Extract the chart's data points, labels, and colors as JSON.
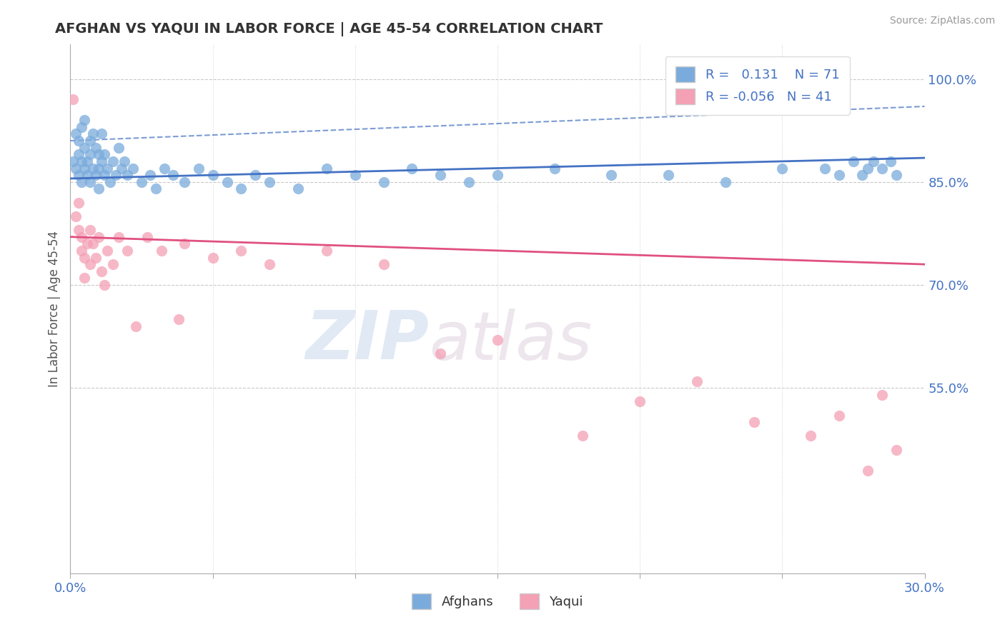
{
  "title": "AFGHAN VS YAQUI IN LABOR FORCE | AGE 45-54 CORRELATION CHART",
  "source": "Source: ZipAtlas.com",
  "ylabel": "In Labor Force | Age 45-54",
  "xlim": [
    0.0,
    0.3
  ],
  "ylim": [
    0.28,
    1.05
  ],
  "right_yticks": [
    1.0,
    0.85,
    0.7,
    0.55
  ],
  "right_yticklabels": [
    "100.0%",
    "85.0%",
    "70.0%",
    "55.0%"
  ],
  "xticks": [
    0.0,
    0.05,
    0.1,
    0.15,
    0.2,
    0.25,
    0.3
  ],
  "xticklabels": [
    "0.0%",
    "",
    "",
    "",
    "",
    "",
    "30.0%"
  ],
  "legend_labels": [
    "Afghans",
    "Yaqui"
  ],
  "afghan_R": 0.131,
  "afghan_N": 71,
  "yaqui_R": -0.056,
  "yaqui_N": 41,
  "blue_color": "#7aabdc",
  "pink_color": "#f4a0b5",
  "blue_line_color": "#4472c4",
  "pink_line_color": "#e05080",
  "background_color": "#ffffff",
  "watermark_zip": "ZIP",
  "watermark_atlas": "atlas",
  "afghan_line_x": [
    0.0,
    0.3
  ],
  "afghan_line_y": [
    0.855,
    0.885
  ],
  "yaqui_line_x": [
    0.0,
    0.3
  ],
  "yaqui_line_y": [
    0.77,
    0.73
  ],
  "dashed_line_x": [
    0.0,
    0.3
  ],
  "dashed_line_y": [
    0.91,
    0.96
  ],
  "afghan_x": [
    0.001,
    0.002,
    0.002,
    0.003,
    0.003,
    0.003,
    0.004,
    0.004,
    0.004,
    0.005,
    0.005,
    0.005,
    0.006,
    0.006,
    0.007,
    0.007,
    0.007,
    0.008,
    0.008,
    0.009,
    0.009,
    0.01,
    0.01,
    0.01,
    0.011,
    0.011,
    0.012,
    0.012,
    0.013,
    0.014,
    0.015,
    0.016,
    0.017,
    0.018,
    0.019,
    0.02,
    0.022,
    0.025,
    0.028,
    0.03,
    0.033,
    0.036,
    0.04,
    0.045,
    0.05,
    0.055,
    0.06,
    0.065,
    0.07,
    0.08,
    0.09,
    0.1,
    0.11,
    0.12,
    0.13,
    0.14,
    0.15,
    0.17,
    0.19,
    0.21,
    0.23,
    0.25,
    0.265,
    0.27,
    0.275,
    0.278,
    0.28,
    0.282,
    0.285,
    0.288,
    0.29
  ],
  "afghan_y": [
    0.88,
    0.92,
    0.87,
    0.91,
    0.89,
    0.86,
    0.93,
    0.88,
    0.85,
    0.9,
    0.87,
    0.94,
    0.88,
    0.86,
    0.91,
    0.89,
    0.85,
    0.92,
    0.87,
    0.9,
    0.86,
    0.89,
    0.87,
    0.84,
    0.92,
    0.88,
    0.86,
    0.89,
    0.87,
    0.85,
    0.88,
    0.86,
    0.9,
    0.87,
    0.88,
    0.86,
    0.87,
    0.85,
    0.86,
    0.84,
    0.87,
    0.86,
    0.85,
    0.87,
    0.86,
    0.85,
    0.84,
    0.86,
    0.85,
    0.84,
    0.87,
    0.86,
    0.85,
    0.87,
    0.86,
    0.85,
    0.86,
    0.87,
    0.86,
    0.86,
    0.85,
    0.87,
    0.87,
    0.86,
    0.88,
    0.86,
    0.87,
    0.88,
    0.87,
    0.88,
    0.86
  ],
  "yaqui_x": [
    0.001,
    0.002,
    0.003,
    0.003,
    0.004,
    0.004,
    0.005,
    0.005,
    0.006,
    0.007,
    0.007,
    0.008,
    0.009,
    0.01,
    0.011,
    0.012,
    0.013,
    0.015,
    0.017,
    0.02,
    0.023,
    0.027,
    0.032,
    0.038,
    0.04,
    0.05,
    0.06,
    0.07,
    0.09,
    0.11,
    0.13,
    0.15,
    0.18,
    0.2,
    0.22,
    0.24,
    0.26,
    0.27,
    0.28,
    0.285,
    0.29
  ],
  "yaqui_y": [
    0.97,
    0.8,
    0.78,
    0.82,
    0.77,
    0.75,
    0.74,
    0.71,
    0.76,
    0.73,
    0.78,
    0.76,
    0.74,
    0.77,
    0.72,
    0.7,
    0.75,
    0.73,
    0.77,
    0.75,
    0.64,
    0.77,
    0.75,
    0.65,
    0.76,
    0.74,
    0.75,
    0.73,
    0.75,
    0.73,
    0.6,
    0.62,
    0.48,
    0.53,
    0.56,
    0.5,
    0.48,
    0.51,
    0.43,
    0.54,
    0.46
  ]
}
